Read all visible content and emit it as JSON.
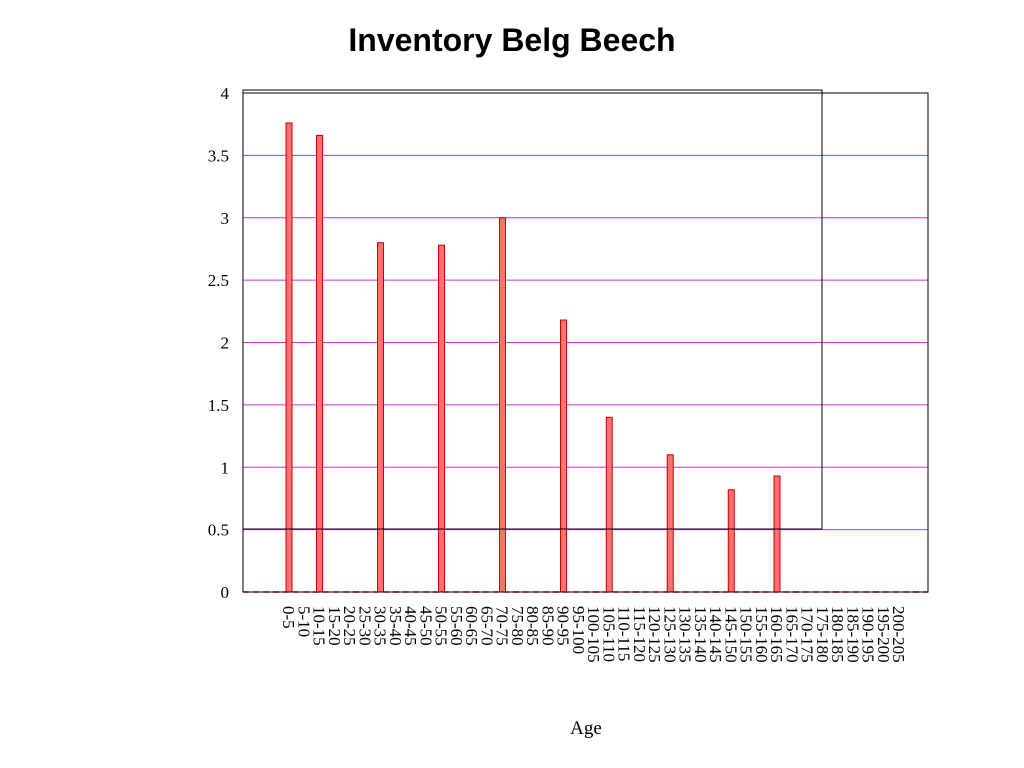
{
  "chart_data": {
    "type": "bar",
    "title": "Inventory Belg Beech",
    "xlabel": "Age",
    "ylabel": "",
    "ylim": [
      0,
      4
    ],
    "yticks": [
      "0",
      "0.5",
      "1",
      "1.5",
      "2",
      "2.5",
      "3",
      "3.5",
      "4"
    ],
    "grid": true,
    "categories": [
      "0-5",
      "5-10",
      "10-15",
      "15-20",
      "20-25",
      "25-30",
      "30-35",
      "35-40",
      "40-45",
      "45-50",
      "50-55",
      "55-60",
      "60-65",
      "65-70",
      "70-75",
      "75-80",
      "80-85",
      "85-90",
      "90-95",
      "95-100",
      "100-105",
      "105-110",
      "110-115",
      "115-120",
      "120-125",
      "125-130",
      "130-135",
      "135-140",
      "140-145",
      "145-150",
      "150-155",
      "155-160",
      "160-165",
      "165-170",
      "170-175",
      "175-180",
      "180-185",
      "185-190",
      "190-195",
      "195-200",
      "200-205"
    ],
    "bars": [
      {
        "category": "0-5",
        "value": 3.76
      },
      {
        "category": "10-15",
        "value": 3.66
      },
      {
        "category": "30-35",
        "value": 2.8
      },
      {
        "category": "50-55",
        "value": 2.78
      },
      {
        "category": "70-75",
        "value": 3.0
      },
      {
        "category": "90-95",
        "value": 2.18
      },
      {
        "category": "105-110",
        "value": 1.4
      },
      {
        "category": "125-130",
        "value": 1.1
      },
      {
        "category": "145-150",
        "value": 0.82
      },
      {
        "category": "160-165",
        "value": 0.93
      }
    ],
    "colors": {
      "bar_fill": "#ff7070",
      "bar_stroke": "#cc0000",
      "grid": "#cc33cc",
      "baseline": "#ff0000"
    }
  }
}
